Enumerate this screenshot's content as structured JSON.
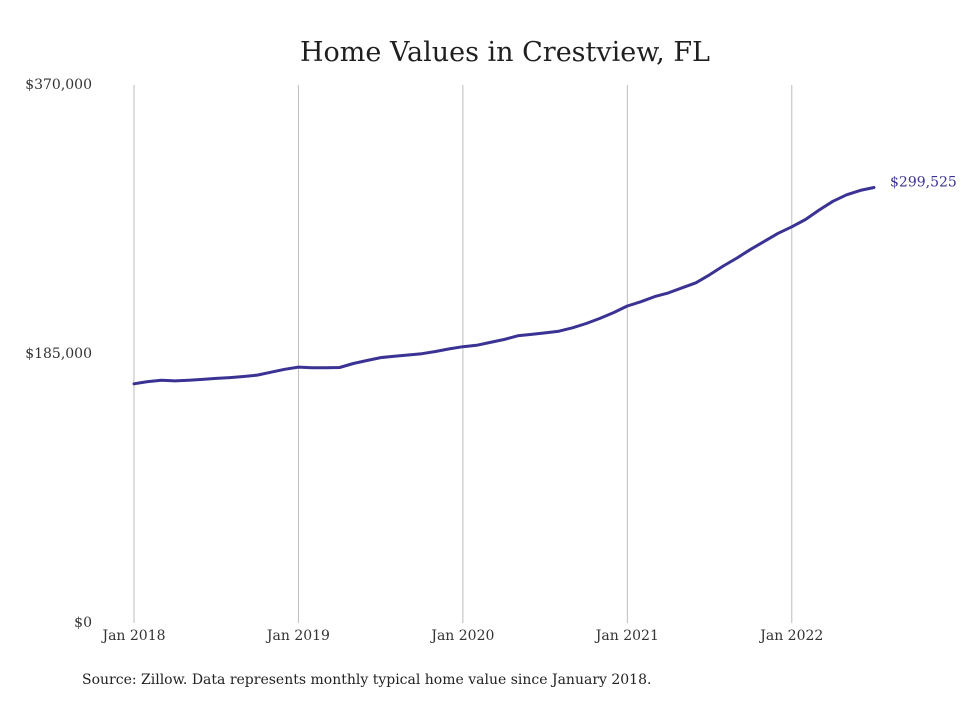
{
  "chart_data": {
    "type": "line",
    "title": "Home Values in Crestview, FL",
    "xlabel": "",
    "ylabel": "",
    "source": "Source: Zillow. Data represents monthly typical home value since January 2018.",
    "ylim": [
      0,
      370000
    ],
    "xlim": [
      "2018-01",
      "2022-07"
    ],
    "y_ticks": [
      {
        "value": 0,
        "label": "$0"
      },
      {
        "value": 185000,
        "label": "$185,000"
      },
      {
        "value": 370000,
        "label": "$370,000"
      }
    ],
    "x_ticks": [
      {
        "value": "2018-01",
        "label": "Jan 2018"
      },
      {
        "value": "2019-01",
        "label": "Jan 2019"
      },
      {
        "value": "2020-01",
        "label": "Jan 2020"
      },
      {
        "value": "2021-01",
        "label": "Jan 2021"
      },
      {
        "value": "2022-01",
        "label": "Jan 2022"
      }
    ],
    "grid": {
      "vertical": true,
      "horizontal": false
    },
    "color": "#3b3394",
    "end_label": "$299,525",
    "series": [
      {
        "x": [
          "2018-01",
          "2018-02",
          "2018-03",
          "2018-04",
          "2018-05",
          "2018-06",
          "2018-07",
          "2018-08",
          "2018-09",
          "2018-10",
          "2018-11",
          "2018-12",
          "2019-01",
          "2019-02",
          "2019-03",
          "2019-04",
          "2019-05",
          "2019-06",
          "2019-07",
          "2019-08",
          "2019-09",
          "2019-10",
          "2019-11",
          "2019-12",
          "2020-01",
          "2020-02",
          "2020-03",
          "2020-04",
          "2020-05",
          "2020-06",
          "2020-07",
          "2020-08",
          "2020-09",
          "2020-10",
          "2020-11",
          "2020-12",
          "2021-01",
          "2021-02",
          "2021-03",
          "2021-04",
          "2021-05",
          "2021-06",
          "2021-07",
          "2021-08",
          "2021-09",
          "2021-10",
          "2021-11",
          "2021-12",
          "2022-01",
          "2022-02",
          "2022-03",
          "2022-04",
          "2022-05",
          "2022-06",
          "2022-07"
        ],
        "values": [
          164500,
          166000,
          167000,
          166500,
          167000,
          167500,
          168200,
          168800,
          169500,
          170500,
          172500,
          174500,
          176000,
          175500,
          175500,
          175700,
          178500,
          180500,
          182500,
          183500,
          184300,
          185200,
          186700,
          188500,
          190000,
          191000,
          193000,
          195000,
          197500,
          198500,
          199500,
          200700,
          203000,
          206000,
          209500,
          213500,
          218000,
          221000,
          224500,
          227000,
          230500,
          234000,
          239500,
          245500,
          251000,
          257000,
          262500,
          268000,
          272500,
          277500,
          284000,
          290000,
          294500,
          297500,
          299525
        ]
      }
    ]
  }
}
